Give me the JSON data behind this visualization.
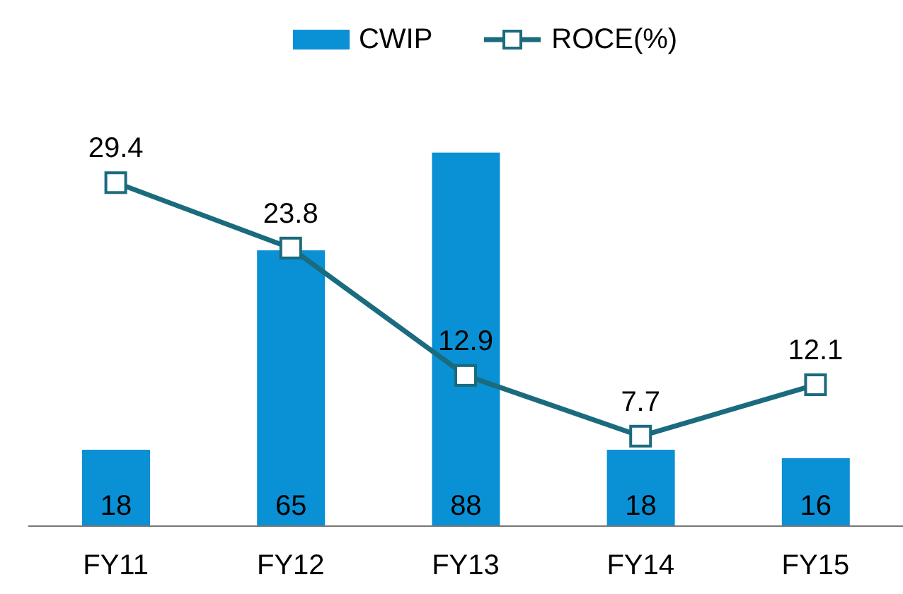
{
  "chart_data": {
    "type": "bar",
    "categories": [
      "FY11",
      "FY12",
      "FY13",
      "FY14",
      "FY15"
    ],
    "series": [
      {
        "name": "CWIP",
        "color": "#0a90d4",
        "values": [
          18,
          65,
          88,
          18,
          16
        ]
      },
      {
        "name": "ROCE(%)",
        "type": "line",
        "axis": "y2",
        "color": "#1b6b7e",
        "values": [
          29.4,
          23.8,
          12.9,
          7.7,
          12.1
        ]
      }
    ],
    "data_labels": true,
    "legend": "top",
    "marker": "square",
    "grid": false
  }
}
